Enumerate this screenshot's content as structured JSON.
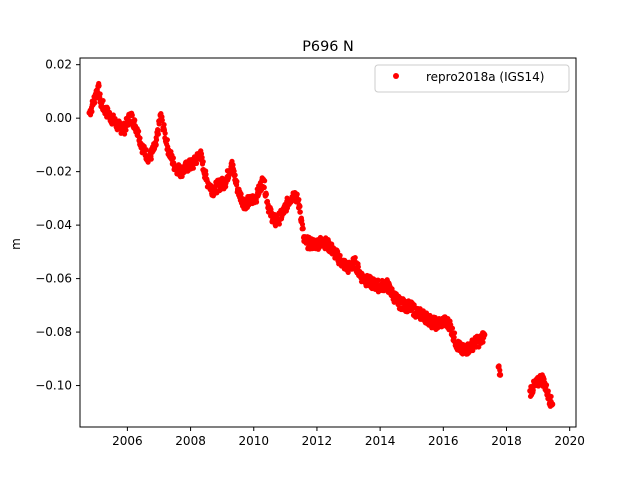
{
  "chart_data": {
    "type": "scatter",
    "title": "P696 N",
    "xlabel": "",
    "ylabel": "m",
    "xlim": [
      2004.5,
      2020.2
    ],
    "ylim": [
      -0.1155,
      0.0225
    ],
    "x_ticks": [
      2006,
      2008,
      2010,
      2012,
      2014,
      2016,
      2018,
      2020
    ],
    "x_tick_labels": [
      "2006",
      "2008",
      "2010",
      "2012",
      "2014",
      "2016",
      "2018",
      "2020"
    ],
    "y_ticks": [
      0.02,
      0.0,
      -0.02,
      -0.04,
      -0.06,
      -0.08,
      -0.1
    ],
    "y_tick_labels": [
      "0.02",
      "0.00",
      "−0.02",
      "−0.04",
      "−0.06",
      "−0.08",
      "−0.10"
    ],
    "grid": false,
    "legend_position": "top-right",
    "colors": {
      "series": "#ff0000"
    },
    "series": [
      {
        "name": "repro2018a (IGS14)",
        "marker": "circle",
        "color": "#ff0000",
        "points": [
          [
            2004.8,
            0.002
          ],
          [
            2004.9,
            0.005
          ],
          [
            2005.0,
            0.009
          ],
          [
            2005.08,
            0.012
          ],
          [
            2005.15,
            0.006
          ],
          [
            2005.3,
            0.003
          ],
          [
            2005.5,
            0.0
          ],
          [
            2005.7,
            -0.003
          ],
          [
            2005.9,
            -0.004
          ],
          [
            2006.1,
            0.001
          ],
          [
            2006.3,
            -0.004
          ],
          [
            2006.5,
            -0.012
          ],
          [
            2006.7,
            -0.015
          ],
          [
            2006.9,
            -0.01
          ],
          [
            2007.05,
            0.001
          ],
          [
            2007.15,
            -0.004
          ],
          [
            2007.3,
            -0.012
          ],
          [
            2007.5,
            -0.018
          ],
          [
            2007.7,
            -0.02
          ],
          [
            2007.9,
            -0.018
          ],
          [
            2008.1,
            -0.017
          ],
          [
            2008.3,
            -0.013
          ],
          [
            2008.5,
            -0.023
          ],
          [
            2008.7,
            -0.027
          ],
          [
            2008.9,
            -0.025
          ],
          [
            2009.1,
            -0.024
          ],
          [
            2009.3,
            -0.017
          ],
          [
            2009.5,
            -0.027
          ],
          [
            2009.7,
            -0.032
          ],
          [
            2009.9,
            -0.031
          ],
          [
            2010.1,
            -0.029
          ],
          [
            2010.3,
            -0.023
          ],
          [
            2010.5,
            -0.035
          ],
          [
            2010.7,
            -0.039
          ],
          [
            2010.9,
            -0.036
          ],
          [
            2011.1,
            -0.031
          ],
          [
            2011.3,
            -0.028
          ],
          [
            2011.45,
            -0.033
          ],
          [
            2011.6,
            -0.046
          ],
          [
            2011.8,
            -0.047
          ],
          [
            2012.0,
            -0.047
          ],
          [
            2012.2,
            -0.046
          ],
          [
            2012.4,
            -0.048
          ],
          [
            2012.6,
            -0.051
          ],
          [
            2012.8,
            -0.054
          ],
          [
            2013.0,
            -0.056
          ],
          [
            2013.2,
            -0.054
          ],
          [
            2013.4,
            -0.059
          ],
          [
            2013.6,
            -0.061
          ],
          [
            2013.8,
            -0.062
          ],
          [
            2014.0,
            -0.063
          ],
          [
            2014.2,
            -0.062
          ],
          [
            2014.4,
            -0.066
          ],
          [
            2014.6,
            -0.069
          ],
          [
            2014.8,
            -0.07
          ],
          [
            2015.0,
            -0.071
          ],
          [
            2015.2,
            -0.073
          ],
          [
            2015.4,
            -0.074
          ],
          [
            2015.6,
            -0.076
          ],
          [
            2015.8,
            -0.077
          ],
          [
            2016.0,
            -0.076
          ],
          [
            2016.2,
            -0.077
          ],
          [
            2016.4,
            -0.084
          ],
          [
            2016.6,
            -0.087
          ],
          [
            2016.8,
            -0.086
          ],
          [
            2017.0,
            -0.084
          ],
          [
            2017.2,
            -0.083
          ],
          [
            2017.3,
            -0.081
          ],
          [
            2017.75,
            -0.093
          ],
          [
            2017.8,
            -0.096
          ],
          [
            2018.75,
            -0.102
          ],
          [
            2018.9,
            -0.1
          ],
          [
            2019.0,
            -0.099
          ],
          [
            2019.1,
            -0.097
          ],
          [
            2019.2,
            -0.099
          ],
          [
            2019.3,
            -0.103
          ],
          [
            2019.4,
            -0.106
          ],
          [
            2019.45,
            -0.107
          ]
        ]
      }
    ]
  }
}
